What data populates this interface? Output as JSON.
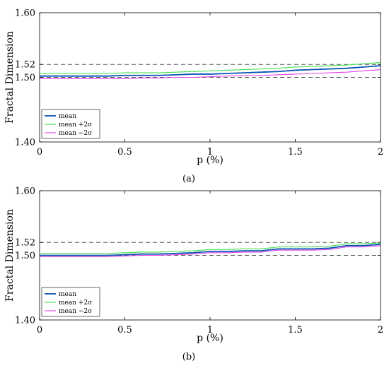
{
  "chart_data": [
    {
      "type": "line",
      "caption": "(a)",
      "xlabel": "p (%)",
      "ylabel": "Fractal Dimension",
      "xlim": [
        0,
        2
      ],
      "ylim": [
        1.4,
        1.6
      ],
      "xticks": [
        0,
        0.5,
        1,
        1.5,
        2
      ],
      "xtick_labels": [
        "0",
        "0.5",
        "1",
        "1.5",
        "2"
      ],
      "yticks": [
        1.4,
        1.5,
        1.52,
        1.6
      ],
      "ytick_labels": [
        "1.40",
        "1.50",
        "1.52",
        "1.60"
      ],
      "reference_lines": [
        1.5,
        1.52
      ],
      "grid": false,
      "legend_position": "bottom-left",
      "x": [
        0,
        0.1,
        0.2,
        0.3,
        0.4,
        0.5,
        0.6,
        0.7,
        0.8,
        0.9,
        1.0,
        1.1,
        1.2,
        1.3,
        1.4,
        1.5,
        1.6,
        1.7,
        1.8,
        1.9,
        2.0
      ],
      "series": [
        {
          "name": "mean",
          "color": "#0a53b5",
          "values": [
            1.502,
            1.502,
            1.502,
            1.502,
            1.502,
            1.503,
            1.503,
            1.503,
            1.504,
            1.505,
            1.505,
            1.506,
            1.507,
            1.508,
            1.509,
            1.511,
            1.512,
            1.513,
            1.514,
            1.516,
            1.518
          ]
        },
        {
          "name": "mean +2σ",
          "color": "#44e04a",
          "values": [
            1.506,
            1.506,
            1.506,
            1.506,
            1.506,
            1.507,
            1.507,
            1.507,
            1.508,
            1.509,
            1.51,
            1.511,
            1.512,
            1.513,
            1.514,
            1.516,
            1.517,
            1.518,
            1.519,
            1.521,
            1.523
          ]
        },
        {
          "name": "mean −2σ",
          "color": "#e544e8",
          "values": [
            1.498,
            1.498,
            1.498,
            1.498,
            1.498,
            1.498,
            1.499,
            1.499,
            1.5,
            1.5,
            1.501,
            1.502,
            1.503,
            1.503,
            1.504,
            1.505,
            1.506,
            1.507,
            1.508,
            1.51,
            1.512
          ]
        }
      ]
    },
    {
      "type": "line",
      "caption": "(b)",
      "xlabel": "p (%)",
      "ylabel": "Fractal Dimension",
      "xlim": [
        0,
        2
      ],
      "ylim": [
        1.4,
        1.6
      ],
      "xticks": [
        0,
        0.5,
        1,
        1.5,
        2
      ],
      "xtick_labels": [
        "0",
        "0.5",
        "1",
        "1.5",
        "2"
      ],
      "yticks": [
        1.4,
        1.5,
        1.52,
        1.6
      ],
      "ytick_labels": [
        "1.40",
        "1.50",
        "1.52",
        "1.60"
      ],
      "reference_lines": [
        1.5,
        1.52
      ],
      "grid": false,
      "legend_position": "bottom-left",
      "x": [
        0,
        0.1,
        0.2,
        0.3,
        0.4,
        0.5,
        0.6,
        0.7,
        0.8,
        0.9,
        1.0,
        1.1,
        1.2,
        1.3,
        1.4,
        1.5,
        1.6,
        1.7,
        1.8,
        1.9,
        2.0
      ],
      "series": [
        {
          "name": "mean",
          "color": "#0a53b5",
          "values": [
            1.5,
            1.5,
            1.5,
            1.5,
            1.5,
            1.501,
            1.502,
            1.502,
            1.503,
            1.504,
            1.506,
            1.506,
            1.507,
            1.507,
            1.51,
            1.51,
            1.51,
            1.511,
            1.515,
            1.515,
            1.517
          ]
        },
        {
          "name": "mean +2σ",
          "color": "#44e04a",
          "values": [
            1.503,
            1.503,
            1.503,
            1.503,
            1.503,
            1.504,
            1.505,
            1.505,
            1.506,
            1.507,
            1.509,
            1.509,
            1.51,
            1.51,
            1.513,
            1.513,
            1.513,
            1.514,
            1.518,
            1.518,
            1.519
          ]
        },
        {
          "name": "mean −2σ",
          "color": "#e544e8",
          "values": [
            1.498,
            1.498,
            1.498,
            1.498,
            1.498,
            1.499,
            1.5,
            1.5,
            1.501,
            1.502,
            1.504,
            1.504,
            1.505,
            1.505,
            1.508,
            1.508,
            1.508,
            1.509,
            1.513,
            1.513,
            1.515
          ]
        }
      ]
    }
  ]
}
